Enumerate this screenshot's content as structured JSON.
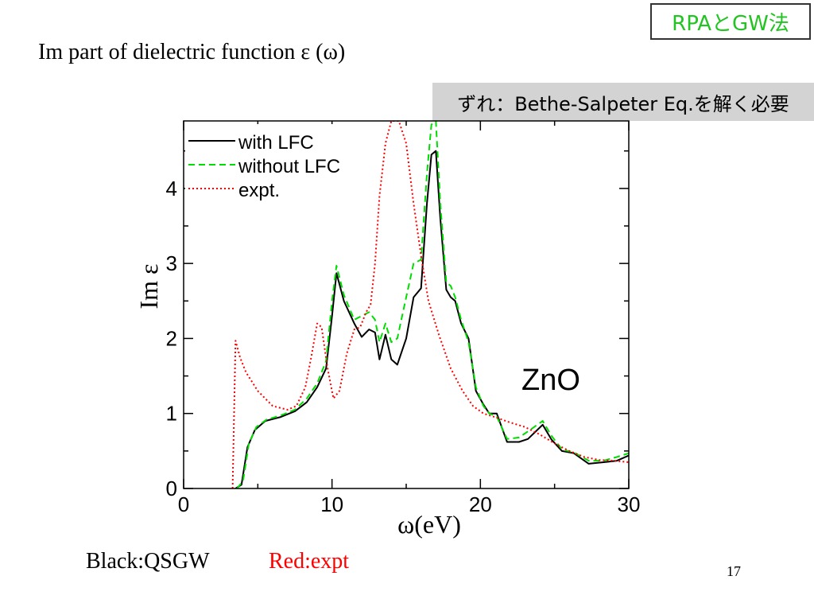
{
  "slide": {
    "corner_badge": "RPAとGW法",
    "title": "Im part of dielectric function ε (ω)",
    "note": "ずれ：Bethe-Salpeter Eq.を解く必要",
    "footer_black": "Black:QSGW",
    "footer_red": "Red:expt",
    "page_number": "17"
  },
  "chart_data": {
    "type": "line",
    "xlabel": "ω(eV)",
    "ylabel": "Im ε",
    "annotation": "ZnO",
    "xlim": [
      0,
      30
    ],
    "ylim": [
      0,
      4.9
    ],
    "xticks": [
      0,
      10,
      20,
      30
    ],
    "yticks": [
      0,
      1,
      2,
      3,
      4
    ],
    "legend_position": "top-left",
    "grid": false,
    "series": [
      {
        "name": "with LFC",
        "color": "#000000",
        "dash": "solid",
        "points": [
          [
            3.5,
            0
          ],
          [
            3.9,
            0.05
          ],
          [
            4.3,
            0.55
          ],
          [
            4.8,
            0.78
          ],
          [
            5.5,
            0.9
          ],
          [
            6.5,
            0.95
          ],
          [
            7.5,
            1.03
          ],
          [
            8.3,
            1.15
          ],
          [
            9.0,
            1.35
          ],
          [
            9.6,
            1.6
          ],
          [
            10.0,
            2.3
          ],
          [
            10.3,
            2.87
          ],
          [
            10.8,
            2.5
          ],
          [
            11.5,
            2.2
          ],
          [
            12.0,
            2.02
          ],
          [
            12.5,
            2.12
          ],
          [
            12.9,
            2.08
          ],
          [
            13.2,
            1.72
          ],
          [
            13.6,
            2.05
          ],
          [
            14.0,
            1.72
          ],
          [
            14.4,
            1.65
          ],
          [
            15.0,
            2.0
          ],
          [
            15.5,
            2.55
          ],
          [
            16.0,
            2.67
          ],
          [
            16.4,
            3.8
          ],
          [
            16.7,
            4.45
          ],
          [
            17.0,
            4.5
          ],
          [
            17.3,
            3.6
          ],
          [
            17.7,
            2.65
          ],
          [
            18.0,
            2.55
          ],
          [
            18.3,
            2.5
          ],
          [
            18.7,
            2.2
          ],
          [
            19.2,
            2.0
          ],
          [
            19.7,
            1.3
          ],
          [
            20.2,
            1.12
          ],
          [
            20.6,
            1.0
          ],
          [
            21.1,
            1.0
          ],
          [
            21.8,
            0.62
          ],
          [
            22.6,
            0.62
          ],
          [
            23.2,
            0.66
          ],
          [
            24.2,
            0.85
          ],
          [
            24.8,
            0.65
          ],
          [
            25.5,
            0.5
          ],
          [
            26.3,
            0.47
          ],
          [
            27.3,
            0.33
          ],
          [
            28.3,
            0.35
          ],
          [
            29.2,
            0.37
          ],
          [
            30.0,
            0.44
          ]
        ]
      },
      {
        "name": "without LFC",
        "color": "#00dd00",
        "dash": "8,5",
        "points": [
          [
            3.6,
            0
          ],
          [
            4.0,
            0.1
          ],
          [
            4.4,
            0.6
          ],
          [
            4.9,
            0.82
          ],
          [
            5.6,
            0.92
          ],
          [
            6.5,
            0.97
          ],
          [
            7.5,
            1.05
          ],
          [
            8.3,
            1.2
          ],
          [
            9.0,
            1.4
          ],
          [
            9.6,
            1.7
          ],
          [
            10.0,
            2.5
          ],
          [
            10.3,
            2.97
          ],
          [
            10.8,
            2.58
          ],
          [
            11.5,
            2.25
          ],
          [
            12.0,
            2.3
          ],
          [
            12.5,
            2.35
          ],
          [
            12.9,
            2.25
          ],
          [
            13.2,
            1.95
          ],
          [
            13.6,
            2.2
          ],
          [
            14.0,
            1.95
          ],
          [
            14.4,
            2.0
          ],
          [
            15.0,
            2.55
          ],
          [
            15.5,
            3.0
          ],
          [
            16.0,
            3.05
          ],
          [
            16.4,
            4.2
          ],
          [
            16.7,
            4.85
          ],
          [
            17.0,
            4.9
          ],
          [
            17.3,
            3.8
          ],
          [
            17.7,
            2.75
          ],
          [
            18.0,
            2.7
          ],
          [
            18.3,
            2.55
          ],
          [
            18.7,
            2.25
          ],
          [
            19.2,
            1.95
          ],
          [
            19.7,
            1.35
          ],
          [
            20.2,
            1.1
          ],
          [
            20.6,
            1.0
          ],
          [
            21.1,
            0.96
          ],
          [
            21.8,
            0.66
          ],
          [
            22.6,
            0.68
          ],
          [
            23.2,
            0.76
          ],
          [
            24.2,
            0.9
          ],
          [
            24.8,
            0.7
          ],
          [
            25.5,
            0.52
          ],
          [
            26.3,
            0.48
          ],
          [
            27.3,
            0.37
          ],
          [
            28.3,
            0.37
          ],
          [
            29.2,
            0.42
          ],
          [
            30.0,
            0.47
          ]
        ]
      },
      {
        "name": "expt.",
        "color": "#ff0000",
        "dash": "2,3",
        "points": [
          [
            3.3,
            0
          ],
          [
            3.5,
            1.97
          ],
          [
            3.8,
            1.75
          ],
          [
            4.2,
            1.55
          ],
          [
            5.0,
            1.3
          ],
          [
            6.0,
            1.1
          ],
          [
            7.0,
            1.05
          ],
          [
            7.6,
            1.1
          ],
          [
            8.2,
            1.35
          ],
          [
            8.6,
            1.75
          ],
          [
            9.0,
            2.2
          ],
          [
            9.3,
            2.15
          ],
          [
            9.7,
            1.6
          ],
          [
            10.1,
            1.2
          ],
          [
            10.5,
            1.3
          ],
          [
            11.0,
            1.8
          ],
          [
            11.5,
            2.12
          ],
          [
            11.9,
            2.15
          ],
          [
            12.3,
            2.35
          ],
          [
            12.6,
            2.45
          ],
          [
            12.9,
            3.0
          ],
          [
            13.2,
            3.9
          ],
          [
            13.6,
            4.6
          ],
          [
            14.0,
            4.9
          ],
          [
            14.5,
            4.9
          ],
          [
            15.0,
            4.6
          ],
          [
            15.5,
            3.8
          ],
          [
            16.0,
            3.1
          ],
          [
            16.5,
            2.5
          ],
          [
            17.2,
            2.05
          ],
          [
            18.0,
            1.6
          ],
          [
            18.8,
            1.3
          ],
          [
            19.5,
            1.1
          ],
          [
            20.2,
            1.0
          ],
          [
            21.0,
            0.95
          ],
          [
            22.0,
            0.88
          ],
          [
            23.0,
            0.82
          ],
          [
            24.0,
            0.72
          ],
          [
            25.0,
            0.6
          ],
          [
            26.0,
            0.5
          ],
          [
            27.0,
            0.42
          ],
          [
            28.0,
            0.38
          ],
          [
            29.0,
            0.37
          ],
          [
            30.0,
            0.35
          ]
        ]
      }
    ]
  }
}
